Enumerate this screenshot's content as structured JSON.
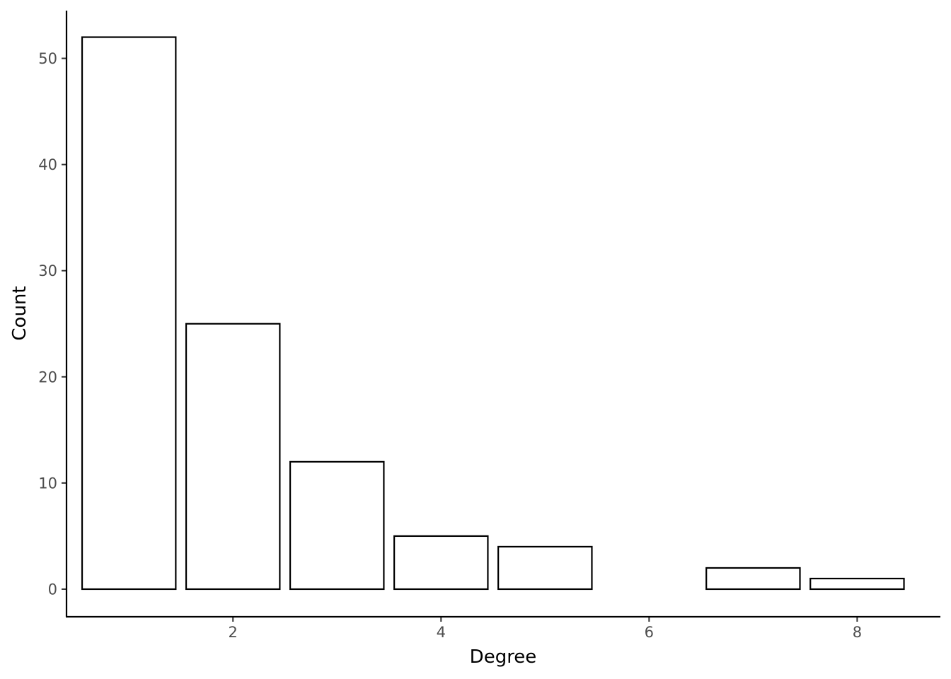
{
  "chart_data": {
    "type": "bar",
    "xlabel": "Degree",
    "ylabel": "Count",
    "x": [
      1,
      2,
      3,
      4,
      5,
      7,
      8
    ],
    "values": [
      52,
      25,
      12,
      5,
      4,
      2,
      1
    ],
    "xlim": [
      0.4,
      8.8
    ],
    "ylim": [
      -2.6,
      54.5
    ],
    "xticks": [
      2,
      4,
      6,
      8
    ],
    "xtick_labels": [
      "2",
      "4",
      "6",
      "8"
    ],
    "yticks": [
      0,
      10,
      20,
      30,
      40,
      50
    ],
    "ytick_labels": [
      "0",
      "10",
      "20",
      "30",
      "40",
      "50"
    ],
    "bar_fill": "#ffffff",
    "bar_stroke": "#000000",
    "grid": false,
    "legend": "none"
  }
}
